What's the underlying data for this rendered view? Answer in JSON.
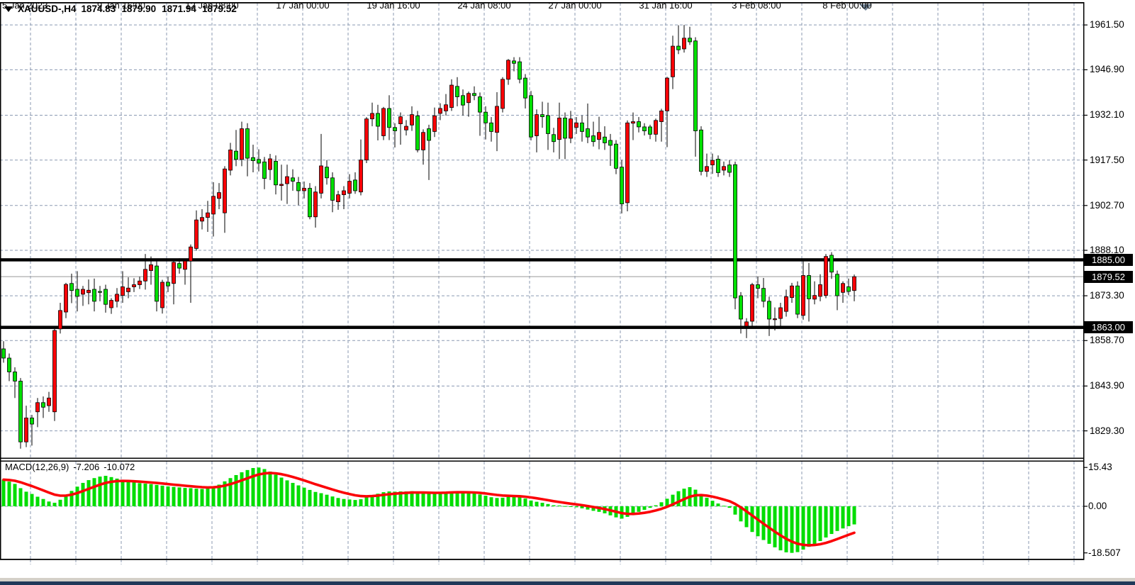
{
  "header": {
    "symbol": "XAUUSD-,H4",
    "open": "1874.83",
    "high": "1879.90",
    "low": "1871.94",
    "close": "1879.52"
  },
  "indicator": {
    "label": "MACD(12,26,9)",
    "macd_value": "-7.206",
    "signal_value": "-10.072"
  },
  "price_axis": {
    "ticks": [
      "1961.50",
      "1946.90",
      "1932.10",
      "1917.50",
      "1902.70",
      "1888.10",
      "1873.30",
      "1858.70",
      "1843.90",
      "1829.30"
    ],
    "tick_values": [
      1961.5,
      1946.9,
      1932.1,
      1917.5,
      1902.7,
      1888.1,
      1873.3,
      1858.7,
      1843.9,
      1829.3
    ],
    "badges": [
      {
        "label": "1885.00",
        "value": 1885.0,
        "kind": "hline"
      },
      {
        "label": "1879.52",
        "value": 1879.52,
        "kind": "current-price"
      },
      {
        "label": "1863.00",
        "value": 1863.0,
        "kind": "hline"
      }
    ]
  },
  "macd_axis": {
    "ticks": [
      "15.43",
      "0.00",
      "-18.507"
    ],
    "tick_values": [
      15.43,
      0.0,
      -18.507
    ]
  },
  "time_axis": {
    "labels": [
      "5 Jan 2023",
      "9 Jan 16:00",
      "12 Jan 08:00",
      "17 Jan 00:00",
      "19 Jan 16:00",
      "24 Jan 08:00",
      "27 Jan 00:00",
      "31 Jan 16:00",
      "3 Feb 08:00",
      "8 Feb 00:00"
    ]
  },
  "colors": {
    "bull": "#fb0207",
    "bear": "#00e002",
    "wick": "#000000",
    "grid": "#8b9ab2",
    "hline": "#000000",
    "current_line": "#999999",
    "histogram": "#00dd00",
    "signal": "#fb0207",
    "badge_bg": "#000000",
    "badge_fg": "#ffffff",
    "border": "#000000",
    "strip": "#d4d0c8",
    "bottom_bar": "#20395a",
    "shift_marker": "#6e8092"
  },
  "chart_data": {
    "type": "candlestick",
    "title": "XAUUSD-,H4",
    "symbol": "XAUUSD-",
    "timeframe": "H4",
    "ylim": [
      1820.7,
      1968.7
    ],
    "grid": "dashed",
    "hlines": [
      1885.0,
      1863.0
    ],
    "current_price": 1879.52,
    "x_labels": [
      "5 Jan 2023",
      "9 Jan 16:00",
      "12 Jan 08:00",
      "17 Jan 00:00",
      "19 Jan 16:00",
      "24 Jan 08:00",
      "27 Jan 00:00",
      "31 Jan 16:00",
      "3 Feb 08:00",
      "8 Feb 00:00"
    ],
    "candles_ohlc": [
      [
        1856.0,
        1858.5,
        1851.5,
        1853.0
      ],
      [
        1853.0,
        1854.5,
        1845.5,
        1848.5
      ],
      [
        1848.5,
        1850.0,
        1840.0,
        1845.5
      ],
      [
        1845.5,
        1846.5,
        1823.5,
        1825.7
      ],
      [
        1825.7,
        1837.5,
        1824.0,
        1833.5
      ],
      [
        1833.5,
        1834.5,
        1824.5,
        1831.5
      ],
      [
        1835.5,
        1840.0,
        1830.5,
        1838.5
      ],
      [
        1838.5,
        1840.5,
        1833.5,
        1837.0
      ],
      [
        1837.5,
        1842.0,
        1835.5,
        1840.0
      ],
      [
        1835.5,
        1862.5,
        1832.5,
        1862.0
      ],
      [
        1862.5,
        1871.0,
        1861.0,
        1868.5
      ],
      [
        1868.0,
        1877.5,
        1866.0,
        1877.0
      ],
      [
        1877.3,
        1880.5,
        1870.9,
        1875.0
      ],
      [
        1875.4,
        1881.3,
        1868.2,
        1873.1
      ],
      [
        1873.8,
        1876.5,
        1870.0,
        1875.4
      ],
      [
        1874.3,
        1878.6,
        1870.5,
        1875.1
      ],
      [
        1875.4,
        1878.9,
        1868.2,
        1871.5
      ],
      [
        1874.7,
        1876.5,
        1871.5,
        1874.4
      ],
      [
        1875.4,
        1876.9,
        1867.8,
        1870.5
      ],
      [
        1869.4,
        1872.5,
        1867.4,
        1871.8
      ],
      [
        1871.5,
        1875.8,
        1869.5,
        1873.8
      ],
      [
        1873.4,
        1881.3,
        1871.0,
        1876.2
      ],
      [
        1874.6,
        1879.3,
        1872.5,
        1875.8
      ],
      [
        1876.2,
        1879.0,
        1874.5,
        1876.9
      ],
      [
        1876.9,
        1879.5,
        1875.5,
        1878.1
      ],
      [
        1878.1,
        1886.9,
        1875.3,
        1881.9
      ],
      [
        1881.5,
        1886.1,
        1876.9,
        1883.4
      ],
      [
        1883.0,
        1884.5,
        1868.2,
        1871.5
      ],
      [
        1869.4,
        1878.5,
        1867.5,
        1877.7
      ],
      [
        1877.7,
        1879.5,
        1874.5,
        1876.5
      ],
      [
        1877.3,
        1885.0,
        1870.5,
        1884.2
      ],
      [
        1883.8,
        1885.5,
        1880.5,
        1882.3
      ],
      [
        1881.9,
        1885.2,
        1876.9,
        1884.6
      ],
      [
        1884.6,
        1890.0,
        1871.0,
        1889.2
      ],
      [
        1888.7,
        1901.1,
        1888.0,
        1898.0
      ],
      [
        1897.6,
        1901.5,
        1894.9,
        1898.8
      ],
      [
        1898.8,
        1904.2,
        1894.1,
        1900.3
      ],
      [
        1899.9,
        1910.3,
        1892.6,
        1905.7
      ],
      [
        1905.0,
        1910.0,
        1901.5,
        1906.9
      ],
      [
        1900.3,
        1915.5,
        1893.8,
        1914.6
      ],
      [
        1914.2,
        1923.1,
        1912.5,
        1920.8
      ],
      [
        1920.4,
        1927.3,
        1915.5,
        1917.7
      ],
      [
        1917.7,
        1930.0,
        1915.5,
        1927.7
      ],
      [
        1927.7,
        1929.5,
        1912.2,
        1918.1
      ],
      [
        1918.3,
        1922.5,
        1913.5,
        1917.3
      ],
      [
        1917.7,
        1921.0,
        1913.8,
        1916.5
      ],
      [
        1916.9,
        1918.5,
        1908.0,
        1911.5
      ],
      [
        1914.4,
        1919.5,
        1911.0,
        1917.9
      ],
      [
        1917.1,
        1919.0,
        1906.3,
        1909.4
      ],
      [
        1909.2,
        1916.0,
        1904.3,
        1909.6
      ],
      [
        1909.8,
        1916.0,
        1903.2,
        1912.1
      ],
      [
        1911.7,
        1914.5,
        1907.5,
        1910.6
      ],
      [
        1910.2,
        1912.0,
        1902.8,
        1907.5
      ],
      [
        1907.5,
        1910.5,
        1905.0,
        1908.3
      ],
      [
        1908.3,
        1910.0,
        1898.2,
        1899.0
      ],
      [
        1899.0,
        1909.0,
        1895.5,
        1907.1
      ],
      [
        1906.7,
        1926.0,
        1905.0,
        1915.6
      ],
      [
        1915.2,
        1917.5,
        1909.5,
        1911.7
      ],
      [
        1911.7,
        1913.5,
        1900.5,
        1904.4
      ],
      [
        1903.9,
        1907.5,
        1901.3,
        1906.2
      ],
      [
        1906.2,
        1909.0,
        1901.5,
        1907.5
      ],
      [
        1906.7,
        1912.9,
        1905.0,
        1910.6
      ],
      [
        1911.0,
        1913.5,
        1906.5,
        1907.5
      ],
      [
        1907.1,
        1924.2,
        1906.0,
        1917.5
      ],
      [
        1917.5,
        1931.5,
        1916.5,
        1930.9
      ],
      [
        1930.9,
        1936.2,
        1928.5,
        1932.7
      ],
      [
        1932.7,
        1935.5,
        1923.9,
        1928.5
      ],
      [
        1925.4,
        1934.8,
        1924.0,
        1934.3
      ],
      [
        1934.3,
        1938.6,
        1924.0,
        1928.1
      ],
      [
        1928.1,
        1929.5,
        1921.6,
        1927.0
      ],
      [
        1929.3,
        1933.0,
        1922.5,
        1931.6
      ],
      [
        1927.3,
        1930.5,
        1925.5,
        1928.5
      ],
      [
        1928.9,
        1935.0,
        1927.0,
        1932.3
      ],
      [
        1931.9,
        1933.5,
        1920.0,
        1920.8
      ],
      [
        1920.8,
        1927.5,
        1916.0,
        1926.5
      ],
      [
        1927.7,
        1929.0,
        1911.0,
        1923.9
      ],
      [
        1926.8,
        1934.6,
        1925.0,
        1931.9
      ],
      [
        1932.7,
        1936.0,
        1930.5,
        1934.3
      ],
      [
        1933.5,
        1939.0,
        1932.0,
        1935.5
      ],
      [
        1934.6,
        1943.8,
        1933.5,
        1941.9
      ],
      [
        1941.5,
        1944.5,
        1935.0,
        1938.1
      ],
      [
        1938.5,
        1940.5,
        1932.0,
        1935.4
      ],
      [
        1936.2,
        1939.8,
        1931.6,
        1939.2
      ],
      [
        1939.2,
        1941.5,
        1937.0,
        1938.5
      ],
      [
        1938.1,
        1939.5,
        1925.4,
        1933.1
      ],
      [
        1933.1,
        1935.0,
        1924.2,
        1929.6
      ],
      [
        1929.6,
        1931.5,
        1923.5,
        1926.8
      ],
      [
        1926.5,
        1939.6,
        1920.4,
        1935.0
      ],
      [
        1934.3,
        1944.5,
        1933.0,
        1943.8
      ],
      [
        1943.8,
        1950.4,
        1942.0,
        1950.0
      ],
      [
        1949.8,
        1951.0,
        1946.4,
        1949.0
      ],
      [
        1949.5,
        1951.0,
        1942.5,
        1943.8
      ],
      [
        1944.2,
        1945.5,
        1934.3,
        1937.7
      ],
      [
        1938.5,
        1940.0,
        1923.9,
        1925.0
      ],
      [
        1925.4,
        1934.0,
        1920.0,
        1932.3
      ],
      [
        1932.3,
        1936.5,
        1928.0,
        1931.6
      ],
      [
        1932.0,
        1936.2,
        1920.8,
        1926.1
      ],
      [
        1925.8,
        1928.0,
        1920.0,
        1923.5
      ],
      [
        1924.2,
        1936.2,
        1917.8,
        1931.2
      ],
      [
        1931.2,
        1933.0,
        1917.8,
        1924.6
      ],
      [
        1924.6,
        1933.5,
        1923.0,
        1930.9
      ],
      [
        1928.1,
        1931.5,
        1926.0,
        1929.6
      ],
      [
        1929.6,
        1932.0,
        1923.5,
        1926.8
      ],
      [
        1927.7,
        1935.9,
        1923.0,
        1925.0
      ],
      [
        1925.4,
        1930.0,
        1921.9,
        1923.5
      ],
      [
        1924.2,
        1931.6,
        1921.0,
        1926.5
      ],
      [
        1925.0,
        1928.5,
        1920.8,
        1923.1
      ],
      [
        1923.9,
        1926.0,
        1915.6,
        1922.3
      ],
      [
        1922.7,
        1924.0,
        1912.9,
        1914.8
      ],
      [
        1915.2,
        1917.5,
        1900.1,
        1903.2
      ],
      [
        1903.6,
        1930.4,
        1900.8,
        1929.6
      ],
      [
        1929.5,
        1933.0,
        1924.0,
        1930.0
      ],
      [
        1930.0,
        1931.5,
        1926.5,
        1928.3
      ],
      [
        1928.3,
        1929.5,
        1925.5,
        1927.0
      ],
      [
        1928.3,
        1929.0,
        1924.3,
        1925.9
      ],
      [
        1925.9,
        1931.0,
        1923.5,
        1930.4
      ],
      [
        1930.0,
        1934.2,
        1923.5,
        1933.5
      ],
      [
        1933.5,
        1944.6,
        1921.7,
        1944.2
      ],
      [
        1944.6,
        1958.0,
        1940.6,
        1954.6
      ],
      [
        1954.6,
        1961.4,
        1952.0,
        1953.4
      ],
      [
        1953.7,
        1961.5,
        1952.5,
        1957.2
      ],
      [
        1957.2,
        1960.9,
        1955.0,
        1956.0
      ],
      [
        1956.3,
        1957.5,
        1918.6,
        1927.0
      ],
      [
        1927.3,
        1928.5,
        1912.5,
        1913.8
      ],
      [
        1913.8,
        1919.6,
        1912.0,
        1915.4
      ],
      [
        1915.9,
        1919.6,
        1913.0,
        1917.4
      ],
      [
        1917.8,
        1919.0,
        1912.0,
        1913.4
      ],
      [
        1914.2,
        1917.0,
        1912.5,
        1915.4
      ],
      [
        1915.9,
        1917.5,
        1912.0,
        1913.5
      ],
      [
        1916.0,
        1917.0,
        1868.9,
        1872.6
      ],
      [
        1873.3,
        1874.5,
        1861.0,
        1865.7
      ],
      [
        1863.4,
        1866.0,
        1859.5,
        1864.8
      ],
      [
        1865.0,
        1877.5,
        1863.5,
        1876.9
      ],
      [
        1876.9,
        1879.5,
        1872.5,
        1875.7
      ],
      [
        1875.7,
        1879.1,
        1869.5,
        1871.5
      ],
      [
        1871.5,
        1873.0,
        1860.2,
        1865.7
      ],
      [
        1865.5,
        1869.5,
        1862.0,
        1865.8
      ],
      [
        1865.9,
        1871.0,
        1863.5,
        1869.4
      ],
      [
        1868.2,
        1875.3,
        1866.5,
        1873.0
      ],
      [
        1872.7,
        1877.5,
        1871.0,
        1876.5
      ],
      [
        1876.5,
        1878.0,
        1866.0,
        1867.3
      ],
      [
        1866.9,
        1884.5,
        1865.5,
        1879.9
      ],
      [
        1879.9,
        1884.0,
        1864.9,
        1872.3
      ],
      [
        1872.2,
        1878.0,
        1870.5,
        1873.4
      ],
      [
        1873.1,
        1880.3,
        1871.5,
        1876.9
      ],
      [
        1873.4,
        1886.9,
        1872.5,
        1886.1
      ],
      [
        1886.5,
        1887.5,
        1878.8,
        1881.0
      ],
      [
        1880.3,
        1881.5,
        1868.6,
        1873.3
      ],
      [
        1874.4,
        1878.0,
        1871.0,
        1877.3
      ],
      [
        1876.2,
        1878.9,
        1873.5,
        1874.7
      ],
      [
        1875.0,
        1880.2,
        1871.5,
        1879.5
      ]
    ],
    "macd": {
      "params": "12,26,9",
      "macd_value": -7.206,
      "signal_value": -10.072,
      "signal_period": 9,
      "ylim": [
        -18.507,
        15.43
      ],
      "axis_ticks": [
        "15.43",
        "0.00",
        "-18.507"
      ],
      "histogram": [
        10.6,
        9.8,
        8.9,
        7.2,
        5.8,
        4.9,
        3.8,
        2.9,
        1.9,
        1.4,
        2.6,
        4.4,
        6.1,
        7.8,
        9.3,
        10.4,
        11.2,
        11.8,
        12.1,
        11.6,
        11.0,
        10.4,
        9.9,
        9.5,
        9.2,
        9.0,
        8.8,
        8.5,
        8.2,
        7.9,
        7.7,
        7.5,
        7.3,
        7.2,
        7.0,
        6.9,
        7.1,
        7.8,
        8.6,
        9.9,
        11.2,
        12.4,
        13.5,
        14.4,
        15.2,
        15.4,
        14.8,
        13.8,
        12.6,
        11.4,
        10.3,
        9.3,
        8.3,
        7.4,
        6.5,
        5.7,
        5.2,
        4.6,
        3.9,
        3.3,
        2.9,
        2.7,
        2.5,
        2.8,
        3.6,
        4.5,
        5.0,
        5.6,
        5.9,
        5.8,
        5.9,
        5.9,
        6.0,
        5.6,
        5.4,
        5.1,
        5.2,
        5.4,
        5.6,
        5.9,
        5.9,
        5.6,
        5.4,
        5.2,
        4.7,
        4.2,
        3.6,
        3.3,
        3.4,
        3.7,
        3.8,
        3.6,
        3.1,
        2.3,
        1.8,
        1.4,
        0.9,
        0.4,
        0.3,
        0.1,
        -0.2,
        -0.4,
        -0.8,
        -1.3,
        -1.8,
        -2.2,
        -2.8,
        -3.6,
        -4.4,
        -4.9,
        -4.2,
        -3.2,
        -2.2,
        -1.4,
        -0.6,
        0.4,
        1.6,
        3.0,
        4.6,
        6.0,
        7.0,
        7.6,
        6.6,
        4.9,
        3.4,
        2.2,
        1.1,
        0.2,
        -0.6,
        -3.3,
        -6.0,
        -8.3,
        -10.2,
        -11.9,
        -13.4,
        -14.9,
        -16.3,
        -17.5,
        -18.3,
        -18.5,
        -18.2,
        -17.2,
        -16.1,
        -15.0,
        -13.8,
        -12.4,
        -11.0,
        -9.8,
        -8.8,
        -7.9,
        -7.2
      ]
    }
  }
}
